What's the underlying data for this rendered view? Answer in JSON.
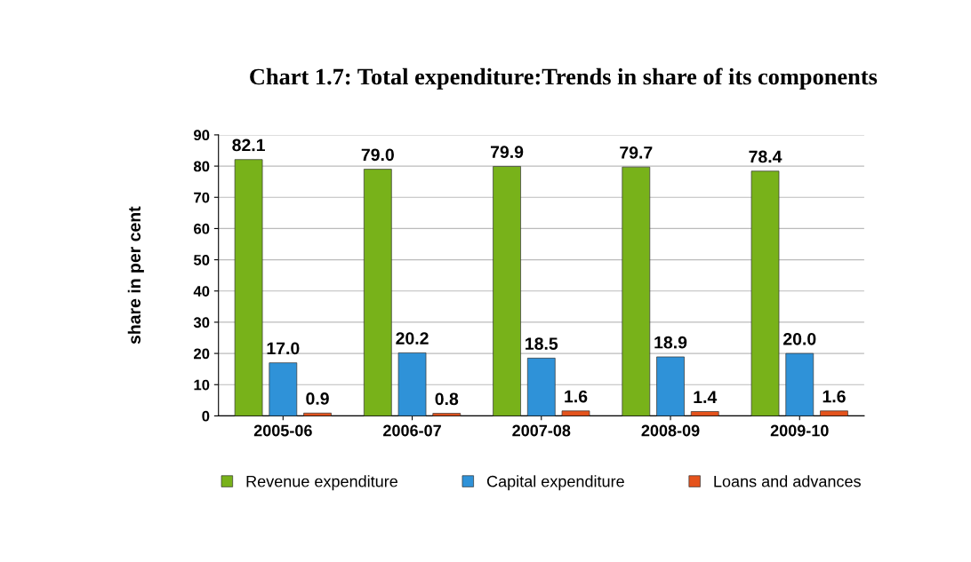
{
  "chart_data": {
    "type": "bar",
    "title": "Chart 1.7: Total expenditure:Trends in share of its components",
    "ylabel": "share in per cent",
    "categories": [
      "2005-06",
      "2006-07",
      "2007-08",
      "2008-09",
      "2009-10"
    ],
    "series": [
      {
        "name": "Revenue expenditure",
        "color": "#78b21a",
        "values": [
          82.1,
          79.0,
          79.9,
          79.7,
          78.4
        ],
        "value_labels": [
          "82.1",
          "79.0",
          "79.9",
          "79.7",
          "78.4"
        ]
      },
      {
        "name": "Capital expenditure",
        "color": "#2f92d8",
        "values": [
          17.0,
          20.2,
          18.5,
          18.9,
          20.0
        ],
        "value_labels": [
          "17.0",
          "20.2",
          "18.5",
          "18.9",
          "20.0"
        ]
      },
      {
        "name": "Loans and advances",
        "color": "#e5531c",
        "values": [
          0.9,
          0.8,
          1.6,
          1.4,
          1.6
        ],
        "value_labels": [
          "0.9",
          "0.8",
          "1.6",
          "1.4",
          "1.6"
        ]
      }
    ],
    "ylim": [
      0,
      90
    ],
    "yticks": [
      0,
      10,
      20,
      30,
      40,
      50,
      60,
      70,
      80,
      90
    ],
    "grid": "y",
    "legend": "bottom"
  }
}
